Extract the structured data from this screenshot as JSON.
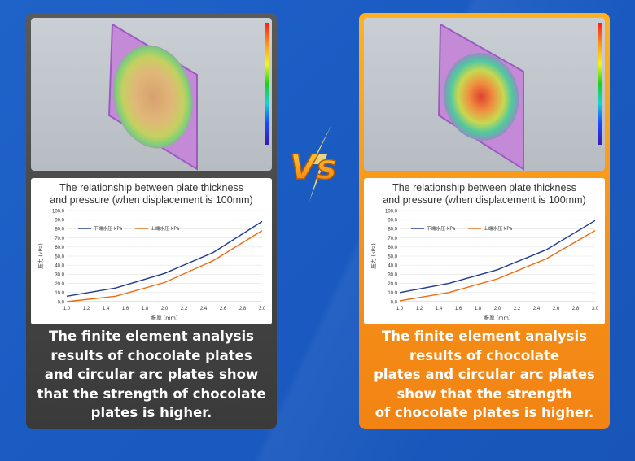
{
  "left_panel": {
    "chart_title_line1": "The relationship between plate thickness",
    "chart_title_line2": "and pressure (when displacement is 100mm)",
    "caption_lines": [
      "The finite element analysis",
      "results of chocolate plates",
      "and circular arc plates show",
      "that the strength of chocolate",
      "plates is higher."
    ]
  },
  "right_panel": {
    "chart_title_line1": "The relationship between plate thickness",
    "chart_title_line2": "and pressure (when displacement is 100mm)",
    "caption_lines": [
      "The finite element analysis",
      "results of chocolate",
      "plates and circular arc plates",
      "show that the strength",
      "of chocolate plates is higher."
    ]
  },
  "vs_text": "Vs",
  "colors": {
    "left_card": "#4a4a4a",
    "right_card": "#f79418",
    "series_lower": "#1f3a93",
    "series_upper": "#f06a0e",
    "background": "#1a5bc2"
  },
  "chart_data": [
    {
      "type": "line",
      "title": "The relationship between plate thickness and pressure (when displacement is 100mm)",
      "xlabel": "板厚 (mm)",
      "ylabel": "压力 (kPa)",
      "x": [
        1.0,
        1.2,
        1.4,
        1.6,
        1.8,
        2.0,
        2.2,
        2.4,
        2.6,
        2.8,
        3.0
      ],
      "x_ticks": [
        "1.0",
        "1.2",
        "1.4",
        "1.6",
        "1.8",
        "2.0",
        "2.2",
        "2.4",
        "2.6",
        "2.8",
        "3.0"
      ],
      "y_ticks": [
        "0.0",
        "10.0",
        "20.0",
        "30.0",
        "40.0",
        "50.0",
        "60.0",
        "70.0",
        "80.0",
        "90.0",
        "100.0"
      ],
      "ylim": [
        0,
        100
      ],
      "xlim": [
        1.0,
        3.0
      ],
      "legend": "top-left",
      "grid": true,
      "series": [
        {
          "name": "下端水压 kPa",
          "x": [
            1.0,
            1.5,
            2.0,
            2.5,
            3.0
          ],
          "values": [
            6,
            15,
            31,
            54,
            88
          ]
        },
        {
          "name": "上端水压 kPa",
          "x": [
            1.0,
            1.5,
            2.0,
            2.5,
            3.0
          ],
          "values": [
            0,
            6,
            21,
            45,
            78
          ]
        }
      ]
    },
    {
      "type": "line",
      "title": "The relationship between plate thickness and pressure (when displacement is 100mm)",
      "xlabel": "板厚 (mm)",
      "ylabel": "压力 (kPa)",
      "x": [
        1.0,
        1.2,
        1.4,
        1.6,
        1.8,
        2.0,
        2.2,
        2.4,
        2.6,
        2.8,
        3.0
      ],
      "x_ticks": [
        "1.0",
        "1.2",
        "1.4",
        "1.6",
        "1.8",
        "2.0",
        "2.2",
        "2.4",
        "2.6",
        "2.8",
        "3.0"
      ],
      "y_ticks": [
        "0.0",
        "10.0",
        "20.0",
        "30.0",
        "40.0",
        "50.0",
        "60.0",
        "70.0",
        "80.0",
        "90.0",
        "100.0"
      ],
      "ylim": [
        0,
        100
      ],
      "xlim": [
        1.0,
        3.0
      ],
      "legend": "top-left",
      "grid": true,
      "series": [
        {
          "name": "下端水压 kPa",
          "x": [
            1.0,
            1.5,
            2.0,
            2.5,
            3.0
          ],
          "values": [
            10,
            20,
            35,
            57,
            89
          ]
        },
        {
          "name": "上端水压 kPa",
          "x": [
            1.0,
            1.5,
            2.0,
            2.5,
            3.0
          ],
          "values": [
            1,
            10,
            25,
            47,
            78
          ]
        }
      ]
    }
  ]
}
